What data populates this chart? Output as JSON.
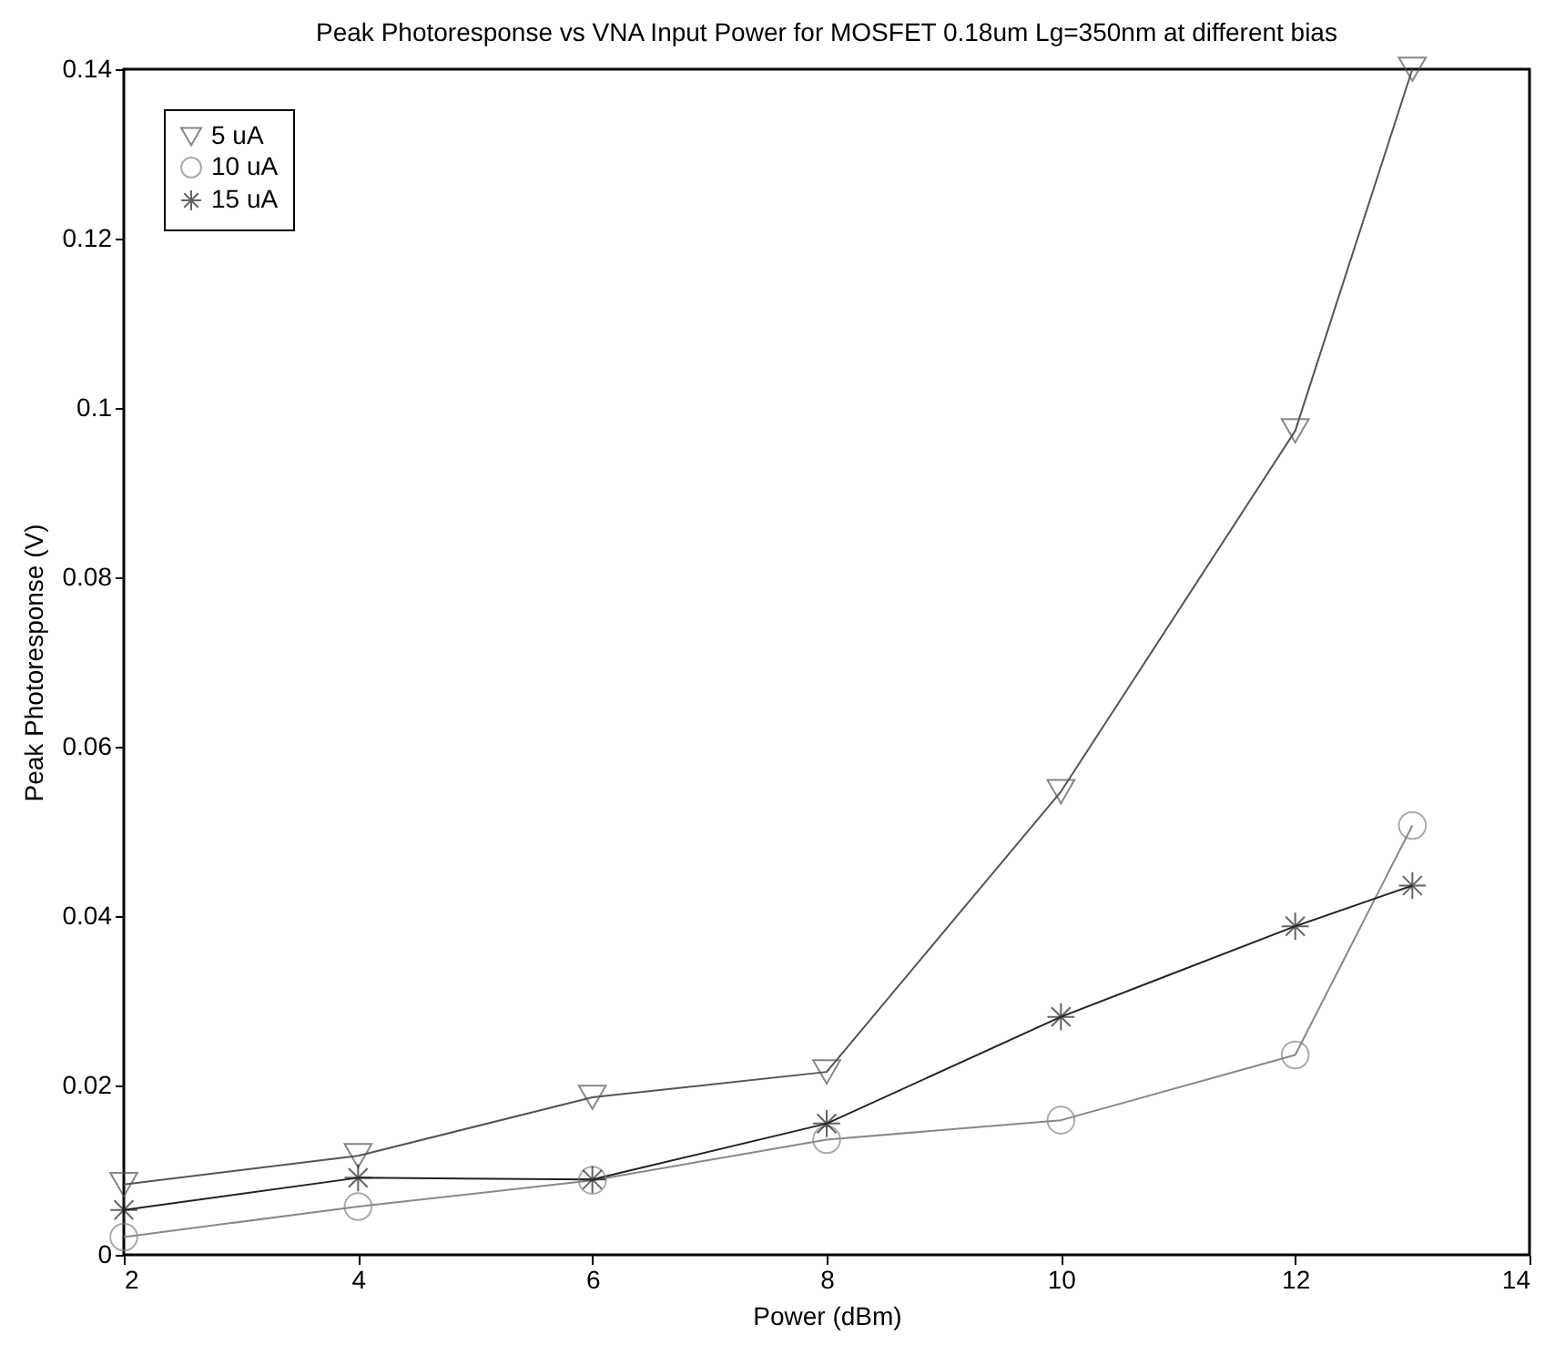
{
  "chart_data": {
    "type": "line",
    "title": "Peak Photoresponse vs VNA Input Power for MOSFET 0.18um Lg=350nm at different bias",
    "xlabel": "Power (dBm)",
    "ylabel": "Peak Photoresponse (V)",
    "x": [
      2,
      4,
      6,
      8,
      10,
      12,
      13
    ],
    "series": [
      {
        "name": "5 uA",
        "color": "#555555",
        "marker": "triangle",
        "values": [
          0.0083,
          0.0117,
          0.0186,
          0.0216,
          0.0547,
          0.0973,
          0.14
        ]
      },
      {
        "name": "10 uA",
        "color": "#888888",
        "marker": "circle",
        "values": [
          0.0021,
          0.0057,
          0.0088,
          0.0136,
          0.0159,
          0.0236,
          0.0507
        ]
      },
      {
        "name": "15 uA",
        "color": "#222222",
        "marker": "cross",
        "values": [
          0.0053,
          0.0091,
          0.0089,
          0.0155,
          0.0281,
          0.0388,
          0.0436
        ]
      }
    ],
    "xlim": [
      2,
      14
    ],
    "xticks": [
      2,
      4,
      6,
      8,
      10,
      12,
      14
    ],
    "ylim": [
      0,
      0.14
    ],
    "yticks": [
      0,
      0.02,
      0.04,
      0.06,
      0.08,
      0.1,
      0.12,
      0.14
    ],
    "grid": false,
    "legend": "top left",
    "line_style": "solid"
  }
}
